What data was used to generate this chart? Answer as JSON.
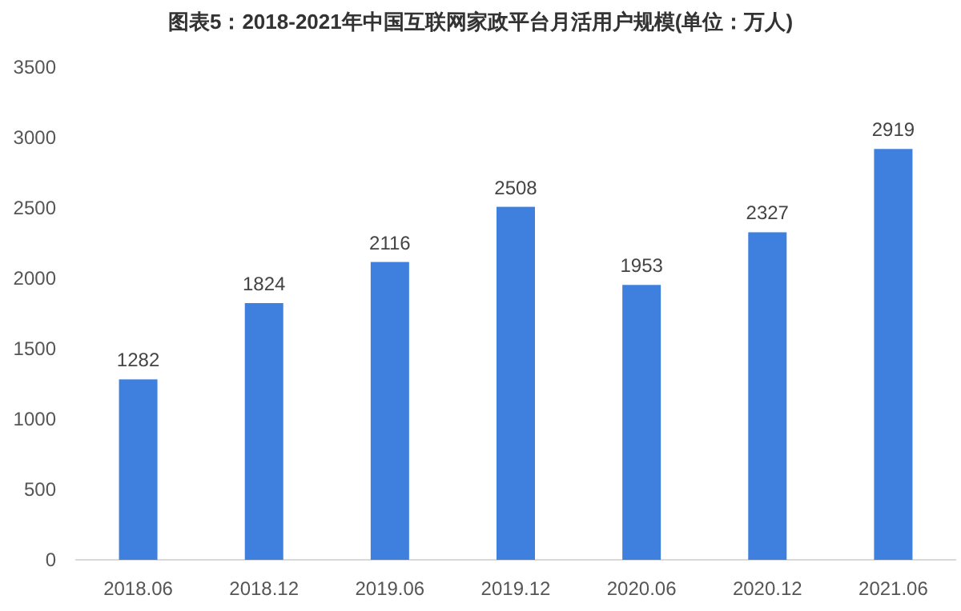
{
  "chart_data": {
    "type": "bar",
    "title": "图表5：2018-2021年中国互联网家政平台月活用户规模(单位：万人)",
    "categories": [
      "2018.06",
      "2018.12",
      "2019.06",
      "2019.12",
      "2020.06",
      "2020.12",
      "2021.06"
    ],
    "values": [
      1282,
      1824,
      2116,
      2508,
      1953,
      2327,
      2919
    ],
    "color": "#3f80df",
    "ylim": [
      0,
      3500
    ],
    "yticks": [
      0,
      500,
      1000,
      1500,
      2000,
      2500,
      3000,
      3500
    ],
    "data_labels": true,
    "grid": false
  }
}
